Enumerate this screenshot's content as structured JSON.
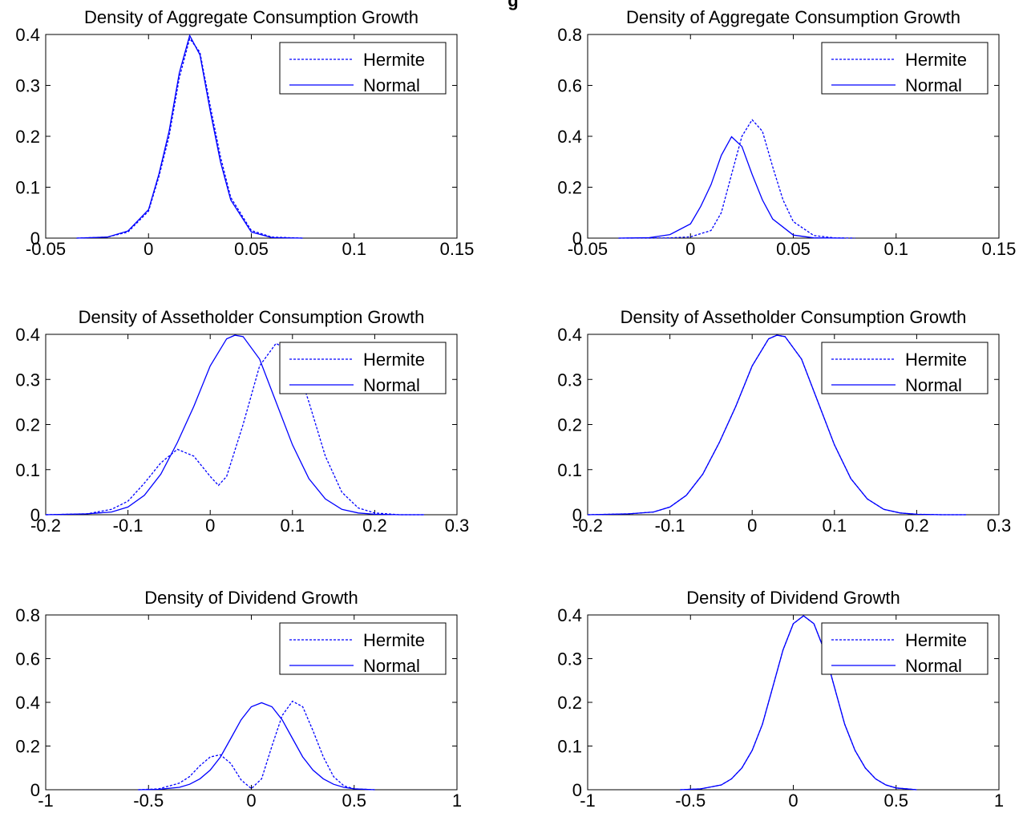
{
  "figure": {
    "suptitle": "g"
  },
  "chart_data": [
    {
      "type": "line",
      "title": "Density of Aggregate Consumption Growth",
      "xlim": [
        -0.05,
        0.15
      ],
      "ylim": [
        0,
        0.4
      ],
      "xticks": [
        "-0.05",
        "0",
        "0.05",
        "0.1",
        "0.15"
      ],
      "yticks": [
        "0",
        "0.1",
        "0.2",
        "0.3",
        "0.4"
      ],
      "legend_position": "top-right",
      "series": [
        {
          "name": "Hermite",
          "style": "dashed",
          "color": "#0000ff",
          "x": [
            -0.035,
            -0.02,
            -0.01,
            0,
            0.005,
            0.01,
            0.015,
            0.02,
            0.025,
            0.03,
            0.035,
            0.04,
            0.05,
            0.06,
            0.075
          ],
          "y": [
            0,
            0.002,
            0.012,
            0.053,
            0.12,
            0.2,
            0.315,
            0.392,
            0.365,
            0.26,
            0.16,
            0.08,
            0.015,
            0.002,
            0
          ]
        },
        {
          "name": "Normal",
          "style": "solid",
          "color": "#0000ff",
          "x": [
            -0.035,
            -0.02,
            -0.01,
            0,
            0.005,
            0.01,
            0.015,
            0.02,
            0.025,
            0.03,
            0.035,
            0.04,
            0.05,
            0.06,
            0.075
          ],
          "y": [
            0,
            0.002,
            0.014,
            0.056,
            0.125,
            0.21,
            0.325,
            0.398,
            0.36,
            0.25,
            0.15,
            0.075,
            0.012,
            0.001,
            0
          ]
        }
      ]
    },
    {
      "type": "line",
      "title": "Density of Aggregate Consumption Growth",
      "xlim": [
        -0.05,
        0.15
      ],
      "ylim": [
        0,
        0.8
      ],
      "xticks": [
        "-0.05",
        "0",
        "0.05",
        "0.1",
        "0.15"
      ],
      "yticks": [
        "0",
        "0.2",
        "0.4",
        "0.6",
        "0.8"
      ],
      "legend_position": "top-right",
      "series": [
        {
          "name": "Hermite",
          "style": "dashed",
          "color": "#0000ff",
          "x": [
            -0.035,
            -0.01,
            0,
            0.01,
            0.015,
            0.02,
            0.025,
            0.03,
            0.035,
            0.04,
            0.045,
            0.05,
            0.06,
            0.07,
            0.08
          ],
          "y": [
            0,
            0.001,
            0.005,
            0.03,
            0.1,
            0.25,
            0.4,
            0.465,
            0.42,
            0.28,
            0.15,
            0.065,
            0.01,
            0.001,
            0
          ]
        },
        {
          "name": "Normal",
          "style": "solid",
          "color": "#0000ff",
          "x": [
            -0.035,
            -0.02,
            -0.01,
            0,
            0.005,
            0.01,
            0.015,
            0.02,
            0.025,
            0.03,
            0.035,
            0.04,
            0.05,
            0.06,
            0.075
          ],
          "y": [
            0,
            0.002,
            0.014,
            0.056,
            0.125,
            0.21,
            0.325,
            0.398,
            0.36,
            0.25,
            0.15,
            0.075,
            0.012,
            0.001,
            0
          ]
        }
      ]
    },
    {
      "type": "line",
      "title": "Density of Assetholder Consumption Growth",
      "xlim": [
        -0.2,
        0.3
      ],
      "ylim": [
        0,
        0.4
      ],
      "xticks": [
        "-0.2",
        "-0.1",
        "0",
        "0.1",
        "0.2",
        "0.3"
      ],
      "yticks": [
        "0",
        "0.1",
        "0.2",
        "0.3",
        "0.4"
      ],
      "legend_position": "top-right",
      "series": [
        {
          "name": "Hermite",
          "style": "dashed",
          "color": "#0000ff",
          "x": [
            -0.2,
            -0.15,
            -0.12,
            -0.1,
            -0.08,
            -0.06,
            -0.04,
            -0.02,
            0,
            0.01,
            0.02,
            0.04,
            0.06,
            0.08,
            0.1,
            0.12,
            0.14,
            0.16,
            0.18,
            0.2,
            0.23,
            0.26
          ],
          "y": [
            0,
            0.002,
            0.012,
            0.03,
            0.07,
            0.115,
            0.145,
            0.13,
            0.085,
            0.065,
            0.085,
            0.2,
            0.33,
            0.38,
            0.36,
            0.25,
            0.13,
            0.05,
            0.015,
            0.004,
            0,
            0
          ]
        },
        {
          "name": "Normal",
          "style": "solid",
          "color": "#0000ff",
          "x": [
            -0.2,
            -0.15,
            -0.12,
            -0.1,
            -0.08,
            -0.06,
            -0.04,
            -0.02,
            0,
            0.02,
            0.03,
            0.04,
            0.06,
            0.08,
            0.1,
            0.12,
            0.14,
            0.16,
            0.18,
            0.2,
            0.23,
            0.26
          ],
          "y": [
            0,
            0.002,
            0.006,
            0.017,
            0.043,
            0.09,
            0.16,
            0.24,
            0.33,
            0.39,
            0.398,
            0.395,
            0.345,
            0.25,
            0.155,
            0.08,
            0.035,
            0.012,
            0.004,
            0.001,
            0,
            0
          ]
        }
      ]
    },
    {
      "type": "line",
      "title": "Density of Assetholder Consumption Growth",
      "xlim": [
        -0.2,
        0.3
      ],
      "ylim": [
        0,
        0.4
      ],
      "xticks": [
        "-0.2",
        "-0.1",
        "0",
        "0.1",
        "0.2",
        "0.3"
      ],
      "yticks": [
        "0",
        "0.1",
        "0.2",
        "0.3",
        "0.4"
      ],
      "legend_position": "top-right",
      "series": [
        {
          "name": "Hermite",
          "style": "dashed",
          "color": "#0000ff",
          "x": [
            -0.2,
            -0.15,
            -0.12,
            -0.1,
            -0.08,
            -0.06,
            -0.04,
            -0.02,
            0,
            0.02,
            0.03,
            0.04,
            0.06,
            0.08,
            0.1,
            0.12,
            0.14,
            0.16,
            0.18,
            0.2,
            0.23,
            0.26
          ],
          "y": [
            0,
            0.002,
            0.006,
            0.017,
            0.043,
            0.09,
            0.16,
            0.24,
            0.33,
            0.39,
            0.398,
            0.395,
            0.345,
            0.25,
            0.155,
            0.08,
            0.035,
            0.012,
            0.004,
            0.001,
            0,
            0
          ]
        },
        {
          "name": "Normal",
          "style": "solid",
          "color": "#0000ff",
          "x": [
            -0.2,
            -0.15,
            -0.12,
            -0.1,
            -0.08,
            -0.06,
            -0.04,
            -0.02,
            0,
            0.02,
            0.03,
            0.04,
            0.06,
            0.08,
            0.1,
            0.12,
            0.14,
            0.16,
            0.18,
            0.2,
            0.23,
            0.26
          ],
          "y": [
            0,
            0.002,
            0.006,
            0.017,
            0.043,
            0.09,
            0.16,
            0.24,
            0.33,
            0.39,
            0.398,
            0.395,
            0.345,
            0.25,
            0.155,
            0.08,
            0.035,
            0.012,
            0.004,
            0.001,
            0,
            0
          ]
        }
      ]
    },
    {
      "type": "line",
      "title": "Density of Dividend Growth",
      "xlim": [
        -1,
        1
      ],
      "ylim": [
        0,
        0.8
      ],
      "xticks": [
        "-1",
        "-0.5",
        "0",
        "0.5",
        "1"
      ],
      "yticks": [
        "0",
        "0.2",
        "0.4",
        "0.6",
        "0.8"
      ],
      "legend_position": "top-right",
      "series": [
        {
          "name": "Hermite",
          "style": "dashed",
          "color": "#0000ff",
          "x": [
            -0.55,
            -0.45,
            -0.35,
            -0.3,
            -0.25,
            -0.2,
            -0.15,
            -0.1,
            -0.05,
            0,
            0.05,
            0.1,
            0.15,
            0.2,
            0.25,
            0.3,
            0.35,
            0.4,
            0.45,
            0.5,
            0.6
          ],
          "y": [
            0,
            0.004,
            0.03,
            0.06,
            0.11,
            0.15,
            0.16,
            0.12,
            0.045,
            0.005,
            0.05,
            0.2,
            0.34,
            0.405,
            0.38,
            0.27,
            0.15,
            0.06,
            0.018,
            0.004,
            0
          ]
        },
        {
          "name": "Normal",
          "style": "solid",
          "color": "#0000ff",
          "x": [
            -0.55,
            -0.45,
            -0.35,
            -0.3,
            -0.25,
            -0.2,
            -0.15,
            -0.1,
            -0.05,
            0,
            0.05,
            0.1,
            0.15,
            0.2,
            0.25,
            0.3,
            0.35,
            0.4,
            0.45,
            0.5,
            0.6
          ],
          "y": [
            0,
            0.002,
            0.011,
            0.025,
            0.05,
            0.09,
            0.15,
            0.235,
            0.32,
            0.38,
            0.398,
            0.38,
            0.32,
            0.235,
            0.15,
            0.09,
            0.05,
            0.025,
            0.011,
            0.004,
            0
          ]
        }
      ]
    },
    {
      "type": "line",
      "title": "Density of Dividend Growth",
      "xlim": [
        -1,
        1
      ],
      "ylim": [
        0,
        0.4
      ],
      "xticks": [
        "-1",
        "-0.5",
        "0",
        "0.5",
        "1"
      ],
      "yticks": [
        "0",
        "0.1",
        "0.2",
        "0.3",
        "0.4"
      ],
      "legend_position": "top-right",
      "series": [
        {
          "name": "Hermite",
          "style": "dashed",
          "color": "#0000ff",
          "x": [
            -0.55,
            -0.45,
            -0.35,
            -0.3,
            -0.25,
            -0.2,
            -0.15,
            -0.1,
            -0.05,
            0,
            0.05,
            0.1,
            0.15,
            0.2,
            0.25,
            0.3,
            0.35,
            0.4,
            0.45,
            0.5,
            0.6
          ],
          "y": [
            0,
            0.002,
            0.011,
            0.025,
            0.05,
            0.09,
            0.15,
            0.235,
            0.32,
            0.38,
            0.398,
            0.38,
            0.32,
            0.235,
            0.15,
            0.09,
            0.05,
            0.025,
            0.011,
            0.004,
            0
          ]
        },
        {
          "name": "Normal",
          "style": "solid",
          "color": "#0000ff",
          "x": [
            -0.55,
            -0.45,
            -0.35,
            -0.3,
            -0.25,
            -0.2,
            -0.15,
            -0.1,
            -0.05,
            0,
            0.05,
            0.1,
            0.15,
            0.2,
            0.25,
            0.3,
            0.35,
            0.4,
            0.45,
            0.5,
            0.6
          ],
          "y": [
            0,
            0.002,
            0.011,
            0.025,
            0.05,
            0.09,
            0.15,
            0.235,
            0.32,
            0.38,
            0.398,
            0.38,
            0.32,
            0.235,
            0.15,
            0.09,
            0.05,
            0.025,
            0.011,
            0.004,
            0
          ]
        }
      ]
    }
  ]
}
